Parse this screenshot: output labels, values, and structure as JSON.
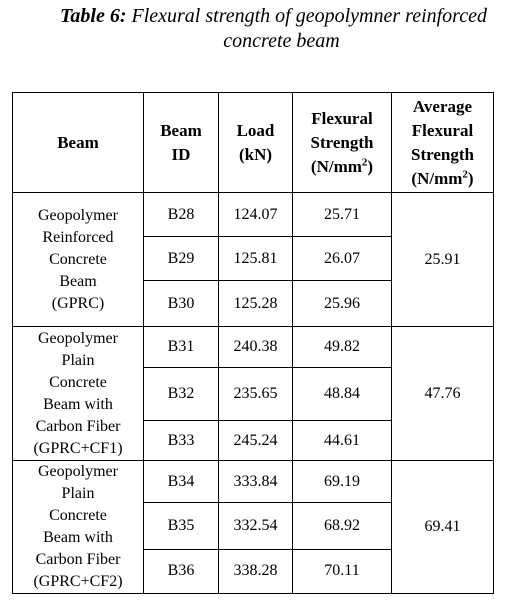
{
  "caption": {
    "label": "Table 6:",
    "line1": "Flexural strength of geopolymner reinforced",
    "line2": "concrete beam"
  },
  "headers": {
    "beam": "Beam",
    "beam_id_1": "Beam",
    "beam_id_2": "ID",
    "load_1": "Load",
    "load_2": "(kN)",
    "flex_1": "Flexural",
    "flex_2": "Strength",
    "flex_unit": "(N/mm",
    "flex_sup": "2",
    "flex_close": ")",
    "avg_1": "Average",
    "avg_2": "Flexural",
    "avg_3": "Strength",
    "avg_unit": "(N/mm",
    "avg_sup": "2",
    "avg_close": ")"
  },
  "groups": [
    {
      "beam": "Geopolymer\nReinforced\nConcrete\nBeam\n(GPRC)",
      "average": "25.91",
      "rows": [
        {
          "id": "B28",
          "load": "124.07",
          "strength": "25.71"
        },
        {
          "id": "B29",
          "load": "125.81",
          "strength": "26.07"
        },
        {
          "id": "B30",
          "load": "125.28",
          "strength": "25.96"
        }
      ]
    },
    {
      "beam": "Geopolymer\nPlain\nConcrete\nBeam with\nCarbon Fiber\n(GPRC+CF1)",
      "average": "47.76",
      "rows": [
        {
          "id": "B31",
          "load": "240.38",
          "strength": "49.82"
        },
        {
          "id": "B32",
          "load": "235.65",
          "strength": "48.84"
        },
        {
          "id": "B33",
          "load": "245.24",
          "strength": "44.61"
        }
      ]
    },
    {
      "beam": "Geopolymer\nPlain\nConcrete\nBeam with\nCarbon Fiber\n(GPRC+CF2)",
      "average": "69.41",
      "rows": [
        {
          "id": "B34",
          "load": "333.84",
          "strength": "69.19"
        },
        {
          "id": "B35",
          "load": "332.54",
          "strength": "68.92"
        },
        {
          "id": "B36",
          "load": "338.28",
          "strength": "70.11"
        }
      ]
    }
  ]
}
